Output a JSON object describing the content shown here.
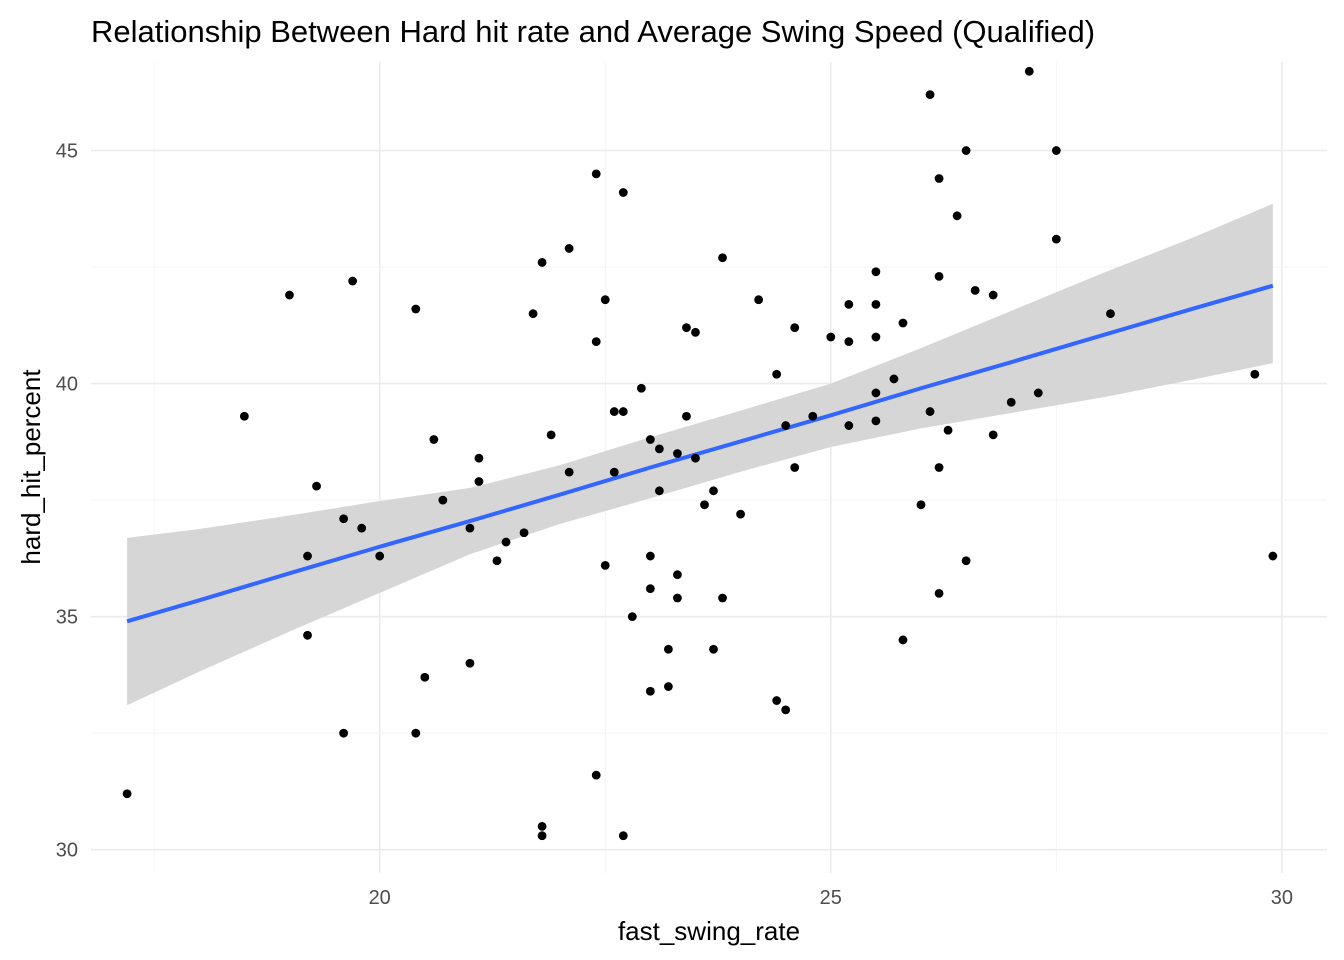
{
  "chart_data": {
    "type": "scatter",
    "title": "Relationship Between Hard hit rate and Average Swing Speed (Qualified)",
    "xlabel": "fast_swing_rate",
    "ylabel": "hard_hit_percent",
    "xlim": [
      16.8,
      30.5
    ],
    "ylim": [
      29.5,
      46.9
    ],
    "x_ticks": [
      20,
      25,
      30
    ],
    "y_ticks": [
      30,
      35,
      40,
      45
    ],
    "x_tick_labels": [
      "20",
      "25",
      "30"
    ],
    "y_tick_labels": [
      "30",
      "35",
      "40",
      "45"
    ],
    "grid": true,
    "colors": {
      "points": "#000000",
      "fit_line": "#3366ff",
      "confidence_band": "#d4d4d4"
    },
    "points": [
      [
        17.2,
        31.2
      ],
      [
        18.5,
        39.3
      ],
      [
        19.0,
        41.9
      ],
      [
        19.2,
        36.3
      ],
      [
        19.2,
        34.6
      ],
      [
        19.3,
        37.8
      ],
      [
        19.6,
        37.1
      ],
      [
        19.6,
        32.5
      ],
      [
        19.7,
        42.2
      ],
      [
        19.8,
        36.9
      ],
      [
        20.0,
        36.3
      ],
      [
        20.4,
        41.6
      ],
      [
        20.4,
        32.5
      ],
      [
        20.5,
        33.7
      ],
      [
        20.6,
        38.8
      ],
      [
        20.7,
        37.5
      ],
      [
        21.0,
        36.9
      ],
      [
        21.0,
        34.0
      ],
      [
        21.1,
        38.4
      ],
      [
        21.1,
        37.9
      ],
      [
        21.3,
        36.2
      ],
      [
        21.4,
        36.6
      ],
      [
        21.6,
        36.8
      ],
      [
        21.7,
        41.5
      ],
      [
        21.8,
        42.6
      ],
      [
        21.8,
        30.5
      ],
      [
        21.8,
        30.3
      ],
      [
        21.9,
        38.9
      ],
      [
        22.1,
        42.9
      ],
      [
        22.1,
        38.1
      ],
      [
        22.4,
        44.5
      ],
      [
        22.4,
        40.9
      ],
      [
        22.4,
        31.6
      ],
      [
        22.5,
        41.8
      ],
      [
        22.5,
        36.1
      ],
      [
        22.6,
        39.4
      ],
      [
        22.6,
        38.1
      ],
      [
        22.7,
        39.4
      ],
      [
        22.7,
        44.1
      ],
      [
        22.7,
        30.3
      ],
      [
        22.8,
        35.0
      ],
      [
        22.9,
        39.9
      ],
      [
        23.0,
        38.8
      ],
      [
        23.0,
        36.3
      ],
      [
        23.0,
        35.6
      ],
      [
        23.0,
        33.4
      ],
      [
        23.1,
        38.6
      ],
      [
        23.1,
        37.7
      ],
      [
        23.2,
        34.3
      ],
      [
        23.2,
        33.5
      ],
      [
        23.3,
        38.5
      ],
      [
        23.3,
        35.9
      ],
      [
        23.3,
        35.4
      ],
      [
        23.4,
        41.2
      ],
      [
        23.4,
        39.3
      ],
      [
        23.5,
        41.1
      ],
      [
        23.5,
        38.4
      ],
      [
        23.6,
        37.4
      ],
      [
        23.7,
        37.7
      ],
      [
        23.7,
        34.3
      ],
      [
        23.8,
        42.7
      ],
      [
        23.8,
        35.4
      ],
      [
        24.0,
        37.2
      ],
      [
        24.2,
        41.8
      ],
      [
        24.4,
        40.2
      ],
      [
        24.4,
        33.2
      ],
      [
        24.5,
        39.1
      ],
      [
        24.5,
        33.0
      ],
      [
        24.6,
        41.2
      ],
      [
        24.6,
        38.2
      ],
      [
        24.8,
        39.3
      ],
      [
        25.0,
        41.0
      ],
      [
        25.2,
        41.7
      ],
      [
        25.2,
        40.9
      ],
      [
        25.2,
        39.1
      ],
      [
        25.5,
        42.4
      ],
      [
        25.5,
        41.7
      ],
      [
        25.5,
        41.0
      ],
      [
        25.5,
        39.8
      ],
      [
        25.5,
        39.2
      ],
      [
        25.7,
        40.1
      ],
      [
        25.8,
        41.3
      ],
      [
        25.8,
        34.5
      ],
      [
        26.0,
        37.4
      ],
      [
        26.1,
        46.2
      ],
      [
        26.1,
        39.4
      ],
      [
        26.2,
        44.4
      ],
      [
        26.2,
        42.3
      ],
      [
        26.2,
        38.2
      ],
      [
        26.2,
        35.5
      ],
      [
        26.3,
        39.0
      ],
      [
        26.4,
        43.6
      ],
      [
        26.5,
        45.0
      ],
      [
        26.5,
        36.2
      ],
      [
        26.6,
        42.0
      ],
      [
        26.8,
        41.9
      ],
      [
        26.8,
        38.9
      ],
      [
        27.0,
        39.6
      ],
      [
        27.2,
        46.7
      ],
      [
        27.3,
        39.8
      ],
      [
        27.5,
        45.0
      ],
      [
        27.5,
        43.1
      ],
      [
        28.1,
        41.5
      ],
      [
        29.7,
        40.2
      ],
      [
        29.9,
        36.3
      ]
    ],
    "fit": {
      "x": [
        17.2,
        18.0,
        19.0,
        20.0,
        21.0,
        22.0,
        23.0,
        24.0,
        25.0,
        26.0,
        27.0,
        28.0,
        29.0,
        29.9
      ],
      "y": [
        34.9,
        35.35,
        35.93,
        36.5,
        37.05,
        37.62,
        38.2,
        38.76,
        39.32,
        39.9,
        40.46,
        41.03,
        41.6,
        42.1
      ],
      "lower": [
        33.1,
        33.82,
        34.68,
        35.51,
        36.34,
        36.99,
        37.54,
        38.11,
        38.64,
        39.04,
        39.37,
        39.7,
        40.08,
        40.44
      ],
      "upper": [
        36.69,
        36.88,
        37.17,
        37.48,
        37.76,
        38.25,
        38.85,
        39.42,
        40.0,
        40.76,
        41.56,
        42.36,
        43.12,
        43.86
      ]
    }
  }
}
